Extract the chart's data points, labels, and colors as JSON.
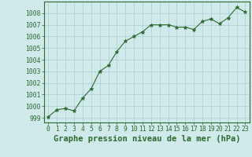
{
  "x": [
    0,
    1,
    2,
    3,
    4,
    5,
    6,
    7,
    8,
    9,
    10,
    11,
    12,
    13,
    14,
    15,
    16,
    17,
    18,
    19,
    20,
    21,
    22,
    23
  ],
  "y": [
    999.1,
    999.7,
    999.8,
    999.6,
    1000.7,
    1001.5,
    1003.0,
    1003.5,
    1004.7,
    1005.6,
    1006.0,
    1006.4,
    1007.0,
    1007.0,
    1007.0,
    1006.8,
    1006.8,
    1006.6,
    1007.3,
    1007.5,
    1007.1,
    1007.6,
    1008.5,
    1008.1
  ],
  "line_color": "#2d6a2d",
  "marker": "*",
  "marker_size": 3.5,
  "bg_color": "#d0eaec",
  "grid_color": "#aacdd0",
  "xlabel": "Graphe pression niveau de la mer (hPa)",
  "xlabel_fontsize": 7.5,
  "ylabel_ticks": [
    999,
    1000,
    1001,
    1002,
    1003,
    1004,
    1005,
    1006,
    1007,
    1008
  ],
  "ylim": [
    998.6,
    1009.0
  ],
  "xlim": [
    -0.5,
    23.5
  ],
  "tick_color": "#2d6a2d",
  "tick_fontsize": 5.8,
  "xlabel_color": "#2d6a2d",
  "spine_color": "#2d6a2d",
  "linewidth": 0.8
}
